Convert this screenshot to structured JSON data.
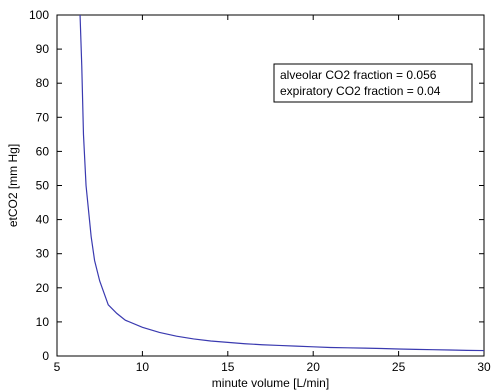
{
  "chart_data": {
    "type": "line",
    "xlabel": "minute volume [L/min]",
    "ylabel": "etCO2 [mm Hg]",
    "xlim": [
      5,
      30
    ],
    "ylim": [
      0,
      100
    ],
    "x_ticks": [
      5,
      10,
      15,
      20,
      25,
      30
    ],
    "y_ticks": [
      0,
      10,
      20,
      30,
      40,
      50,
      60,
      70,
      80,
      90,
      100
    ],
    "grid": false,
    "legend_placement": "top-right",
    "annotation_lines": [
      "alveolar CO2 fraction = 0.056",
      "expiratory CO2 fraction = 0.04"
    ],
    "colors": {
      "line": "#3a3ab0",
      "axes": "#000000"
    },
    "series": [
      {
        "x": [
          6.35,
          6.45,
          6.55,
          6.7,
          6.9,
          7.0,
          7.2,
          7.5,
          8.0,
          8.5,
          9.0,
          10.0,
          11.0,
          12.0,
          13.0,
          14.0,
          15.0,
          16.0,
          17.0,
          18.0,
          19.0,
          20.0,
          21.0,
          22.0,
          23.0,
          24.0,
          25.0,
          26.0,
          27.0,
          28.0,
          29.0,
          30.0
        ],
        "y": [
          100,
          85,
          65,
          50,
          40,
          35,
          28,
          22,
          15,
          12.5,
          10.5,
          8.4,
          6.9,
          5.8,
          5.0,
          4.4,
          4.0,
          3.6,
          3.3,
          3.1,
          2.9,
          2.7,
          2.5,
          2.4,
          2.3,
          2.2,
          2.05,
          1.95,
          1.85,
          1.75,
          1.65,
          1.6
        ]
      }
    ]
  }
}
